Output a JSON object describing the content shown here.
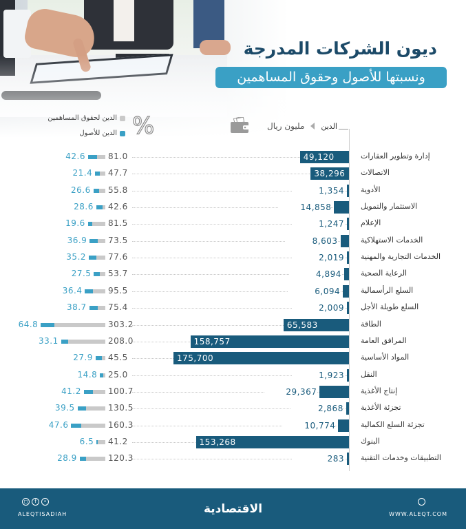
{
  "title": "ديون الشركات المدرجة",
  "subtitle": "ونسبتها للأصول وحقوق المساهمين",
  "legend": {
    "equity_label": "الدين لحقوق المساهمين",
    "assets_label": "الدين للأصول",
    "percent_symbol": "%",
    "debt_label": "الدين",
    "unit_label": "مليون ريال",
    "icons": {
      "wallet": "wallet-icon",
      "arrow": "triangle-left-icon"
    }
  },
  "colors": {
    "debt_bar": "#195b7c",
    "assets": "#3aa0c5",
    "equity": "#c9c9c9",
    "title": "#1c4a68",
    "subtitle_bg": "#3aa0c5",
    "footer_bg": "#195b7c"
  },
  "chart_data": {
    "type": "bar",
    "title": "ديون الشركات المدرجة",
    "subtitle": "ونسبتها للأصول وحقوق المساهمين",
    "unit": "مليون ريال",
    "categories": [
      "إدارة وتطوير العقارات",
      "الاتصالات",
      "الأدوية",
      "الاستثمار والتمويل",
      "الإعلام",
      "الخدمات الاستهلاكية",
      "الخدمات التجارية والمهنية",
      "الرعاية الصحية",
      "السلع الرأسمالية",
      "السلع طويلة الأجل",
      "الطاقة",
      "المرافق العامة",
      "المواد الأساسية",
      "النقل",
      "إنتاج الأغذية",
      "تجزئة الأغذية",
      "تجزئة السلع الكمالية",
      "البنوك",
      "التطبيقات وخدمات التقنية"
    ],
    "series": [
      {
        "name": "الدين (مليون ريال)",
        "values": [
          49120,
          38296,
          1354,
          14858,
          1247,
          8603,
          2019,
          4894,
          6094,
          2009,
          65583,
          158757,
          175700,
          1923,
          29367,
          2868,
          10774,
          153268,
          283
        ],
        "labels": [
          "49,120",
          "38,296",
          "1,354",
          "14,858",
          "1,247",
          "8,603",
          "2,019",
          "4,894",
          "6,094",
          "2,009",
          "65,583",
          "158,757",
          "175,700",
          "1,923",
          "29,367",
          "2,868",
          "10,774",
          "153,268",
          "283"
        ]
      },
      {
        "name": "الدين لحقوق المساهمين %",
        "values": [
          81.0,
          47.7,
          55.8,
          42.6,
          81.5,
          73.5,
          77.6,
          53.7,
          95.5,
          75.4,
          303.2,
          208.0,
          45.5,
          25.0,
          100.7,
          130.5,
          160.3,
          41.2,
          120.3
        ],
        "labels": [
          "81.0",
          "47.7",
          "55.8",
          "42.6",
          "81.5",
          "73.5",
          "77.6",
          "53.7",
          "95.5",
          "75.4",
          "303.2",
          "208.0",
          "45.5",
          "25.0",
          "100.7",
          "130.5",
          "160.3",
          "41.2",
          "120.3"
        ]
      },
      {
        "name": "الدين للأصول %",
        "values": [
          42.6,
          21.4,
          26.6,
          28.6,
          19.6,
          36.9,
          35.2,
          27.5,
          36.4,
          38.7,
          64.8,
          33.1,
          27.9,
          14.8,
          41.2,
          39.5,
          47.6,
          6.5,
          28.9
        ],
        "labels": [
          "42.6",
          "21.4",
          "26.6",
          "28.6",
          "19.6",
          "36.9",
          "35.2",
          "27.5",
          "36.4",
          "38.7",
          "64.8",
          "33.1",
          "27.9",
          "14.8",
          "41.2",
          "39.5",
          "47.6",
          "6.5",
          "28.9"
        ]
      }
    ],
    "xlabel": "",
    "ylabel": "",
    "grid": false,
    "legend_position": "top"
  },
  "footer": {
    "social_handle": "ALEQTISADIAH",
    "social_icons": [
      "instagram-icon",
      "facebook-icon",
      "twitter-icon"
    ],
    "logo_text": "الاقتصادية",
    "website": "WWW.ALEQT.COM",
    "website_icon": "globe-icon"
  }
}
